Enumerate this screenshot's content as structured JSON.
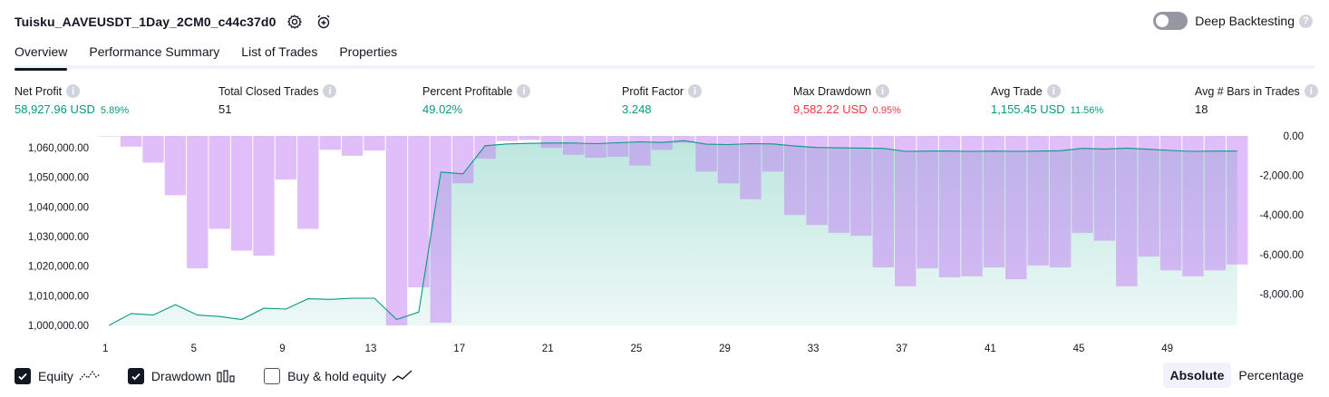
{
  "header": {
    "title": "Tuisku_AAVEUSDT_1Day_2CM0_c44c37d0",
    "icons": [
      "settings-icon",
      "add-alert-icon"
    ]
  },
  "deep_backtesting": {
    "label": "Deep Backtesting",
    "enabled": false,
    "help": "?"
  },
  "tabs": [
    {
      "label": "Overview",
      "active": true
    },
    {
      "label": "Performance Summary",
      "active": false
    },
    {
      "label": "List of Trades",
      "active": false
    },
    {
      "label": "Properties",
      "active": false
    }
  ],
  "metrics": [
    {
      "label": "Net Profit",
      "value": "58,927.96 USD",
      "pct": "5.89%",
      "color": "#089981"
    },
    {
      "label": "Total Closed Trades",
      "value": "51",
      "pct": "",
      "color": "#131722"
    },
    {
      "label": "Percent Profitable",
      "value": "49.02%",
      "pct": "",
      "color": "#089981"
    },
    {
      "label": "Profit Factor",
      "value": "3.248",
      "pct": "",
      "color": "#089981"
    },
    {
      "label": "Max Drawdown",
      "value": "9,582.22 USD",
      "pct": "0.95%",
      "color": "#f23645"
    },
    {
      "label": "Avg Trade",
      "value": "1,155.45 USD",
      "pct": "11.56%",
      "color": "#089981"
    },
    {
      "label": "Avg # Bars in Trades",
      "value": "18",
      "pct": "",
      "color": "#131722"
    }
  ],
  "chart_data": {
    "type": "area",
    "x_ticks": [
      "1",
      "5",
      "9",
      "13",
      "17",
      "21",
      "25",
      "29",
      "33",
      "37",
      "41",
      "45",
      "49"
    ],
    "y_left_ticks": [
      "1,060,000.00",
      "1,050,000.00",
      "1,040,000.00",
      "1,030,000.00",
      "1,020,000.00",
      "1,010,000.00",
      "1,000,000.00"
    ],
    "y_right_ticks": [
      "0.00",
      "-2,000.00",
      "-4,000.00",
      "-6,000.00",
      "-8,000.00"
    ],
    "ylim_left": [
      1000000,
      1064000
    ],
    "ylim_right": [
      -9582,
      0
    ],
    "series": [
      {
        "name": "Equity",
        "color": "#089981",
        "x": [
          1,
          2,
          3,
          4,
          5,
          6,
          7,
          8,
          9,
          10,
          11,
          12,
          13,
          14,
          15,
          16,
          17,
          18,
          19,
          20,
          21,
          22,
          23,
          24,
          25,
          26,
          27,
          28,
          29,
          30,
          31,
          32,
          33,
          34,
          35,
          36,
          37,
          38,
          39,
          40,
          41,
          42,
          43,
          44,
          45,
          46,
          47,
          48,
          49,
          50,
          51,
          52
        ],
        "values": [
          1000000,
          1004000,
          1003500,
          1007000,
          1003500,
          1003000,
          1002000,
          1005800,
          1005500,
          1009000,
          1008800,
          1009200,
          1009200,
          1002000,
          1004500,
          1051800,
          1051200,
          1060700,
          1061300,
          1061500,
          1061600,
          1061600,
          1061400,
          1061700,
          1062000,
          1061800,
          1062400,
          1061200,
          1061100,
          1061400,
          1061300,
          1060600,
          1060100,
          1060000,
          1059900,
          1059800,
          1058800,
          1058900,
          1058900,
          1058800,
          1058900,
          1058800,
          1058900,
          1059000,
          1059800,
          1059600,
          1059900,
          1059500,
          1059100,
          1058800,
          1058900,
          1058900
        ]
      },
      {
        "name": "Drawdown",
        "color": "#c17ef4",
        "values": [
          0,
          -540,
          -1350,
          -3000,
          -6700,
          -4700,
          -5800,
          -6050,
          -2200,
          -4700,
          -700,
          -1000,
          -740,
          -9582,
          -7650,
          -9450,
          -2400,
          -1150,
          -250,
          -200,
          -600,
          -950,
          -1100,
          -1050,
          -1500,
          -700,
          -350,
          -1800,
          -2400,
          -3200,
          -1800,
          -4000,
          -4500,
          -4900,
          -5050,
          -6650,
          -7600,
          -6700,
          -7150,
          -7100,
          -6650,
          -7250,
          -6550,
          -6650,
          -4900,
          -5300,
          -7600,
          -6100,
          -6800,
          -7100,
          -6800,
          -6500
        ]
      }
    ]
  },
  "legend": [
    {
      "label": "Equity",
      "checked": true,
      "icon": "equity-line-icon"
    },
    {
      "label": "Drawdown",
      "checked": true,
      "icon": "drawdown-bars-icon"
    },
    {
      "label": "Buy & hold equity",
      "checked": false,
      "icon": "buy-hold-line-icon"
    }
  ],
  "view_modes": [
    {
      "label": "Absolute",
      "active": true
    },
    {
      "label": "Percentage",
      "active": false
    }
  ]
}
